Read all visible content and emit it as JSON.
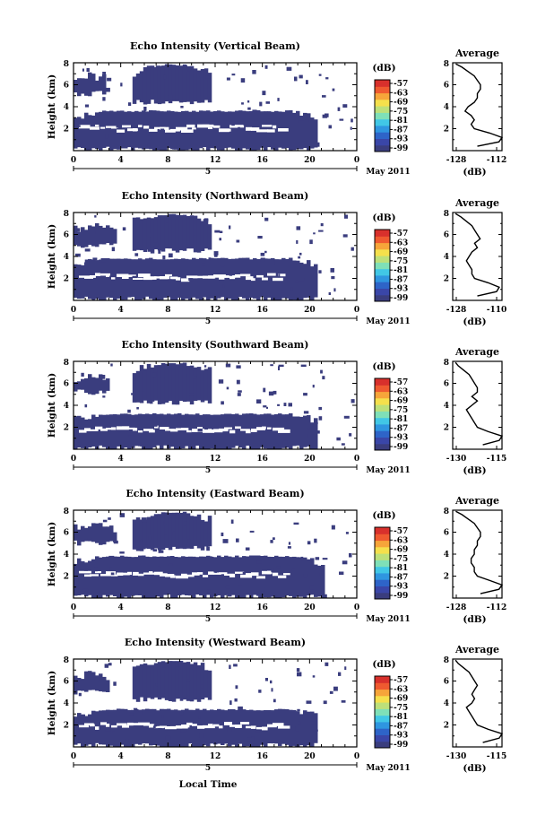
{
  "figure": {
    "x_label": "Local Time",
    "date_label": "May 2011",
    "day_label": "5",
    "colorbar_unit": "(dB)",
    "colorbar_ticks": [
      "-57",
      "-63",
      "-69",
      "-75",
      "-81",
      "-87",
      "-93",
      "-99"
    ],
    "colorbar_colors": [
      "#3a3d7e",
      "#3a46a8",
      "#2e64c8",
      "#2f96e0",
      "#41c7e6",
      "#7fe0b8",
      "#bde07a",
      "#f5e04c",
      "#f6a53a",
      "#ef5a30",
      "#d8302c"
    ],
    "avg_title": "Average",
    "avg_unit": "(dB)",
    "fill_color": "#3a3d7e"
  },
  "chart_data": [
    {
      "type": "heatmap",
      "title": "Echo Intensity (Vertical Beam)",
      "ylabel": "Height (km)",
      "xlim": [
        0,
        24
      ],
      "ylim": [
        0,
        8
      ],
      "x_ticks": [
        "0",
        "4",
        "8",
        "12",
        "16",
        "20",
        "0"
      ],
      "y_ticks": [
        "2",
        "4",
        "6",
        "8"
      ],
      "value_range_db": [
        -99,
        -57
      ],
      "echo_regions_km": [
        {
          "t_start": 0,
          "t_end": 2.5,
          "h_bottom": 5.2,
          "h_top": 7.2
        },
        {
          "t_start": 5,
          "t_end": 11.5,
          "h_bottom": 4.4,
          "h_top": 7.8
        },
        {
          "t_start": 0,
          "t_end": 20.5,
          "h_bottom": 0.1,
          "h_top": 3.6
        }
      ],
      "average": {
        "xlabel_ticks": [
          "-128",
          "-112"
        ],
        "xlim": [
          -128,
          -112
        ],
        "height_km": [
          0.4,
          0.8,
          1.2,
          1.6,
          2.0,
          2.4,
          2.8,
          3.2,
          3.6,
          4.0,
          4.4,
          4.8,
          5.2,
          5.6,
          6.0,
          6.4,
          6.8,
          7.2,
          7.6,
          7.9
        ],
        "value_db": [
          -120,
          -113,
          -112,
          -116,
          -121,
          -122,
          -121,
          -122,
          -124,
          -123,
          -121,
          -120,
          -120,
          -119,
          -119,
          -120,
          -121,
          -123,
          -125,
          -127
        ]
      }
    },
    {
      "type": "heatmap",
      "title": "Echo Intensity (Northward Beam)",
      "ylabel": "Height (km)",
      "xlim": [
        0,
        24
      ],
      "ylim": [
        0,
        8
      ],
      "x_ticks": [
        "0",
        "4",
        "8",
        "12",
        "16",
        "20",
        "0"
      ],
      "y_ticks": [
        "2",
        "4",
        "6",
        "8"
      ],
      "value_range_db": [
        -99,
        -57
      ],
      "echo_regions_km": [
        {
          "t_start": 0,
          "t_end": 3.5,
          "h_bottom": 5.0,
          "h_top": 7.0
        },
        {
          "t_start": 5,
          "t_end": 11.5,
          "h_bottom": 4.5,
          "h_top": 7.8
        },
        {
          "t_start": 0,
          "t_end": 20.5,
          "h_bottom": 0.1,
          "h_top": 3.8
        }
      ],
      "average": {
        "xlabel_ticks": [
          "-128",
          "-110"
        ],
        "xlim": [
          -128,
          -110
        ],
        "height_km": [
          0.4,
          0.8,
          1.2,
          1.6,
          2.0,
          2.4,
          2.8,
          3.2,
          3.6,
          4.0,
          4.4,
          4.8,
          5.2,
          5.6,
          6.0,
          6.4,
          6.8,
          7.2,
          7.6,
          7.9
        ],
        "value_db": [
          -119,
          -112,
          -111,
          -115,
          -120,
          -121,
          -121,
          -122,
          -123,
          -122,
          -121,
          -119,
          -120,
          -118,
          -119,
          -120,
          -121,
          -123,
          -125,
          -127
        ]
      }
    },
    {
      "type": "heatmap",
      "title": "Echo Intensity (Southward Beam)",
      "ylabel": "Height (km)",
      "xlim": [
        0,
        24
      ],
      "ylim": [
        0,
        8
      ],
      "x_ticks": [
        "0",
        "4",
        "8",
        "12",
        "16",
        "20",
        "0"
      ],
      "y_ticks": [
        "2",
        "4",
        "6",
        "8"
      ],
      "value_range_db": [
        -99,
        -57
      ],
      "echo_regions_km": [
        {
          "t_start": 0,
          "t_end": 3,
          "h_bottom": 5.2,
          "h_top": 7.0
        },
        {
          "t_start": 5,
          "t_end": 11.5,
          "h_bottom": 4.3,
          "h_top": 7.8
        },
        {
          "t_start": 0,
          "t_end": 20.5,
          "h_bottom": 0.1,
          "h_top": 3.2
        }
      ],
      "average": {
        "xlabel_ticks": [
          "-130",
          "-115"
        ],
        "xlim": [
          -130,
          -112
        ],
        "height_km": [
          0.4,
          0.8,
          1.2,
          1.6,
          2.0,
          2.4,
          2.8,
          3.2,
          3.6,
          4.0,
          4.4,
          4.8,
          5.2,
          5.6,
          6.0,
          6.4,
          6.8,
          7.2,
          7.6,
          7.9
        ],
        "value_db": [
          -119,
          -113,
          -112,
          -117,
          -121,
          -122,
          -123,
          -124,
          -125,
          -123,
          -121,
          -123,
          -121,
          -121,
          -122,
          -123,
          -124,
          -126,
          -128,
          -129
        ]
      }
    },
    {
      "type": "heatmap",
      "title": "Echo Intensity (Eastward Beam)",
      "ylabel": "Height (km)",
      "xlim": [
        0,
        24
      ],
      "ylim": [
        0,
        8
      ],
      "x_ticks": [
        "0",
        "4",
        "8",
        "12",
        "16",
        "20",
        "0"
      ],
      "y_ticks": [
        "2",
        "4",
        "6",
        "8"
      ],
      "value_range_db": [
        -99,
        -57
      ],
      "echo_regions_km": [
        {
          "t_start": 0,
          "t_end": 3.5,
          "h_bottom": 5.0,
          "h_top": 7.0
        },
        {
          "t_start": 5,
          "t_end": 11.5,
          "h_bottom": 4.5,
          "h_top": 7.8
        },
        {
          "t_start": 0,
          "t_end": 21,
          "h_bottom": 0.1,
          "h_top": 3.8
        }
      ],
      "average": {
        "xlabel_ticks": [
          "-128",
          "-112"
        ],
        "xlim": [
          -128,
          -112
        ],
        "height_km": [
          0.4,
          0.8,
          1.2,
          1.6,
          2.0,
          2.4,
          2.8,
          3.2,
          3.6,
          4.0,
          4.4,
          4.8,
          5.2,
          5.6,
          6.0,
          6.4,
          6.8,
          7.2,
          7.6,
          7.9
        ],
        "value_db": [
          -119,
          -113,
          -112,
          -116,
          -120,
          -121,
          -121,
          -122,
          -122,
          -121,
          -121,
          -120,
          -120,
          -119,
          -119,
          -120,
          -121,
          -123,
          -125,
          -127
        ]
      }
    },
    {
      "type": "heatmap",
      "title": "Echo Intensity (Westward Beam)",
      "ylabel": "Height (km)",
      "xlim": [
        0,
        24
      ],
      "ylim": [
        0,
        8
      ],
      "x_ticks": [
        "0",
        "4",
        "8",
        "12",
        "16",
        "20",
        "0"
      ],
      "y_ticks": [
        "2",
        "4",
        "6",
        "8"
      ],
      "value_range_db": [
        -99,
        -57
      ],
      "echo_regions_km": [
        {
          "t_start": 0,
          "t_end": 3,
          "h_bottom": 5.0,
          "h_top": 7.0
        },
        {
          "t_start": 5,
          "t_end": 11.5,
          "h_bottom": 4.3,
          "h_top": 7.8
        },
        {
          "t_start": 0,
          "t_end": 20.5,
          "h_bottom": 0.1,
          "h_top": 3.4
        }
      ],
      "average": {
        "xlabel_ticks": [
          "-130",
          "-115"
        ],
        "xlim": [
          -130,
          -112
        ],
        "height_km": [
          0.4,
          0.8,
          1.2,
          1.6,
          2.0,
          2.4,
          2.8,
          3.2,
          3.6,
          4.0,
          4.4,
          4.8,
          5.2,
          5.6,
          6.0,
          6.4,
          6.8,
          7.2,
          7.6,
          7.9
        ],
        "value_db": [
          -119,
          -113,
          -112,
          -117,
          -121,
          -122,
          -123,
          -124,
          -125,
          -123,
          -122,
          -123,
          -122,
          -121,
          -122,
          -123,
          -124,
          -126,
          -128,
          -129
        ]
      }
    }
  ]
}
